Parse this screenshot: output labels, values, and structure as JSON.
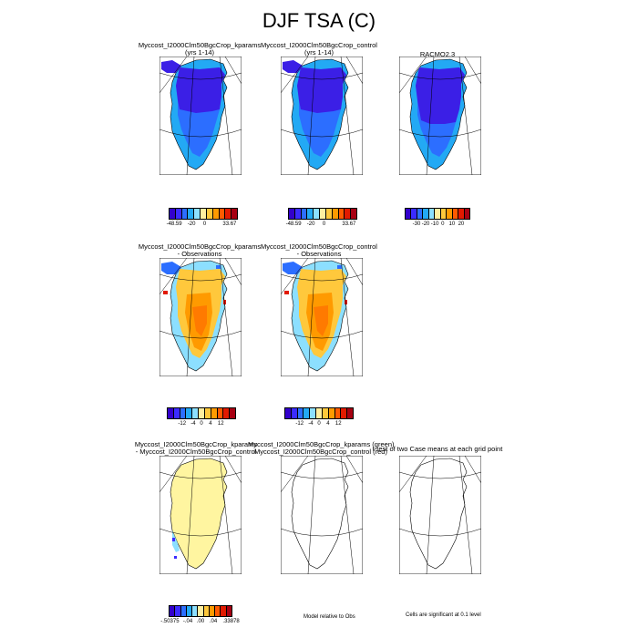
{
  "title": "DJF TSA (C)",
  "panels": {
    "p1": {
      "title1": "Myccost_I2000Clm50BgcCrop_kparams",
      "title2": "(yrs 1-14)"
    },
    "p2": {
      "title1": "Myccost_I2000Clm50BgcCrop_control",
      "title2": "(yrs 1-14)"
    },
    "p3": {
      "title1": "RACMO2.3",
      "title2": ""
    },
    "p4": {
      "title1": "Myccost_I2000Clm50BgcCrop_kparams",
      "title2": "- Observations"
    },
    "p5": {
      "title1": "Myccost_I2000Clm50BgcCrop_control",
      "title2": "- Observations"
    },
    "p7": {
      "title1": "Myccost_I2000Clm50BgcCrop_kparams",
      "title2": "- Myccost_I2000Clm50BgcCrop_control"
    },
    "p8": {
      "title1": "Myccost_I2000Clm50BgcCrop_kparams (green)",
      "title2": "Myccost_I2000Clm50BgcCrop_control (red)"
    },
    "p9": {
      "title1": "t-test of two Case means at each grid point",
      "title2": ""
    }
  },
  "colorbars": {
    "cb1": {
      "colors": [
        "#3300cc",
        "#3b2bff",
        "#2c6eff",
        "#23a9f4",
        "#8cdfff",
        "#ffeea0",
        "#ffc83c",
        "#ff9a00",
        "#ff5a00",
        "#e11a00",
        "#a70012"
      ],
      "labels": [
        "-48.59",
        "-20",
        "0",
        "33.67"
      ]
    },
    "cb2": {
      "colors": [
        "#3300cc",
        "#3b2bff",
        "#2c6eff",
        "#23a9f4",
        "#8cdfff",
        "#ffeea0",
        "#ffc83c",
        "#ff9a00",
        "#ff5a00",
        "#e11a00",
        "#a70012"
      ],
      "labels": [
        "-48.59",
        "-20",
        "0",
        "33.67"
      ]
    },
    "cb3": {
      "colors": [
        "#3300cc",
        "#3b2bff",
        "#2c6eff",
        "#23a9f4",
        "#8cdfff",
        "#ffeea0",
        "#ffc83c",
        "#ff9a00",
        "#ff5a00",
        "#e11a00",
        "#a70012"
      ],
      "labels": [
        "-30",
        "-20",
        "-10",
        "0",
        "10",
        "20"
      ]
    },
    "cb4": {
      "colors": [
        "#3300cc",
        "#3b2bff",
        "#2c6eff",
        "#23a9f4",
        "#8cdfff",
        "#ffeea0",
        "#ffc83c",
        "#ff9a00",
        "#ff5a00",
        "#e11a00",
        "#a70012"
      ],
      "labels": [
        "-12",
        "-4",
        "0",
        "4",
        "12"
      ]
    },
    "cb5": {
      "colors": [
        "#3300cc",
        "#3b2bff",
        "#2c6eff",
        "#23a9f4",
        "#8cdfff",
        "#ffeea0",
        "#ffc83c",
        "#ff9a00",
        "#ff5a00",
        "#e11a00",
        "#a70012"
      ],
      "labels": [
        "-12",
        "-4",
        "0",
        "4",
        "12"
      ]
    },
    "cb7": {
      "colors": [
        "#3300cc",
        "#3b2bff",
        "#2c6eff",
        "#23a9f4",
        "#8cdfff",
        "#ffeea0",
        "#ffc83c",
        "#ff9a00",
        "#ff5a00",
        "#e11a00",
        "#a70012"
      ],
      "labels": [
        "-.50375",
        "-.04",
        ".00",
        ".04",
        ".33878"
      ]
    }
  },
  "notes": {
    "model_relative": "Model relative to Obs",
    "significance": "Cells are significant at 0.1 level"
  },
  "chart_data": [
    {
      "type": "heatmap",
      "title": "DJF TSA (C)",
      "panel": "Myccost_I2000Clm50BgcCrop_kparams (yrs 1-14)",
      "colorbar_ticks": [
        -48.59,
        -20,
        0,
        33.67
      ],
      "range": [
        -48.59,
        33.67
      ]
    },
    {
      "type": "heatmap",
      "title": "DJF TSA (C)",
      "panel": "Myccost_I2000Clm50BgcCrop_control (yrs 1-14)",
      "colorbar_ticks": [
        -48.59,
        -20,
        0,
        33.67
      ],
      "range": [
        -48.59,
        33.67
      ]
    },
    {
      "type": "heatmap",
      "title": "DJF TSA (C)",
      "panel": "RACMO2.3",
      "colorbar_ticks": [
        -30,
        -20,
        -10,
        0,
        10,
        20
      ]
    },
    {
      "type": "heatmap",
      "title": "DJF TSA (C)",
      "panel": "Myccost_I2000Clm50BgcCrop_kparams - Observations",
      "colorbar_ticks": [
        -12,
        -4,
        0,
        4,
        12
      ]
    },
    {
      "type": "heatmap",
      "title": "DJF TSA (C)",
      "panel": "Myccost_I2000Clm50BgcCrop_control - Observations",
      "colorbar_ticks": [
        -12,
        -4,
        0,
        4,
        12
      ]
    },
    {
      "type": "heatmap",
      "title": "DJF TSA (C)",
      "panel": "Myccost_I2000Clm50BgcCrop_kparams - Myccost_I2000Clm50BgcCrop_control",
      "colorbar_ticks": [
        -0.50375,
        -0.04,
        0.0,
        0.04,
        0.33878
      ],
      "range": [
        -0.50375,
        0.33878
      ]
    }
  ]
}
